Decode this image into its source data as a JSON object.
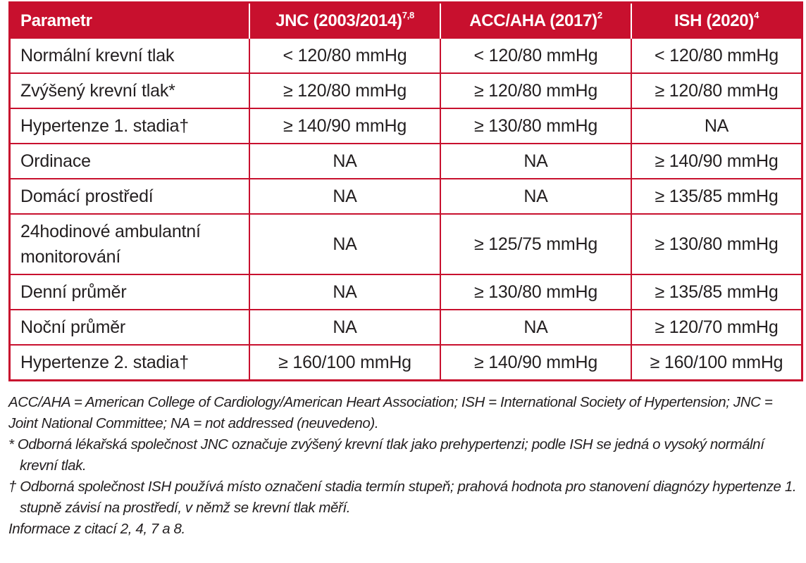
{
  "table": {
    "headers": [
      {
        "text": "Parametr",
        "sup": ""
      },
      {
        "text": "JNC (2003/2014)",
        "sup": "7,8"
      },
      {
        "text": "ACC/AHA (2017)",
        "sup": "2"
      },
      {
        "text": "ISH (2020)",
        "sup": "4"
      }
    ],
    "rows": [
      [
        "Normální krevní tlak",
        "< 120/80 mmHg",
        "< 120/80 mmHg",
        "< 120/80 mmHg"
      ],
      [
        "Zvýšený krevní tlak*",
        "≥ 120/80 mmHg",
        "≥ 120/80 mmHg",
        "≥ 120/80 mmHg"
      ],
      [
        "Hypertenze 1. stadia†",
        "≥ 140/90 mmHg",
        "≥ 130/80 mmHg",
        "NA"
      ],
      [
        "Ordinace",
        "NA",
        "NA",
        "≥ 140/90 mmHg"
      ],
      [
        "Domácí prostředí",
        "NA",
        "NA",
        "≥ 135/85 mmHg"
      ],
      [
        "24hodinové ambulantní monitorování",
        "NA",
        "≥ 125/75 mmHg",
        "≥ 130/80 mmHg"
      ],
      [
        "Denní průměr",
        "NA",
        "≥ 130/80 mmHg",
        "≥ 135/85 mmHg"
      ],
      [
        "Noční průměr",
        "NA",
        "NA",
        "≥ 120/70 mmHg"
      ],
      [
        "Hypertenze 2. stadia†",
        "≥ 160/100 mmHg",
        "≥ 140/90 mmHg",
        "≥ 160/100 mmHg"
      ]
    ]
  },
  "notes": {
    "abbreviations": "ACC/AHA = American College of Cardiology/American Heart Association; ISH = International Society of Hypertension; JNC = Joint National Committee; NA = not addressed (neuvedeno).",
    "asterisk": "* Odborná lékařská společnost JNC označuje zvýšený krevní tlak jako prehypertenzi; podle ISH se jedná o vysoký normální krevní tlak.",
    "dagger": "† Odborná společnost ISH používá místo označení stadia termín stupeň; prahová hodnota pro stanovení diagnózy hypertenze 1. stupně závisí na prostředí, v němž se krevní tlak měří.",
    "source": "Informace z citací 2, 4, 7 a 8."
  },
  "colors": {
    "accent": "#c8102e",
    "header_text": "#ffffff",
    "body_text": "#231f20"
  }
}
